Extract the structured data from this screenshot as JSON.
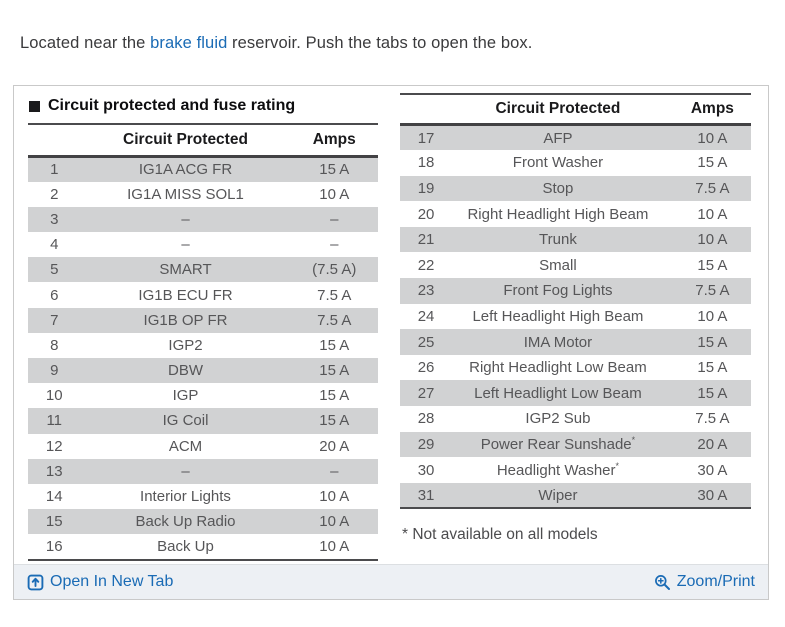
{
  "intro": {
    "text_before": "Located near the ",
    "link_text": "brake fluid",
    "text_after": " reservoir. Push the tabs to open the box."
  },
  "panel": {
    "section_title": "Circuit protected and fuse rating",
    "left_table": {
      "headers": {
        "circuit": "Circuit Protected",
        "amps": "Amps"
      },
      "rows": [
        {
          "num": "1",
          "circuit": "IG1A ACG FR",
          "amps": "15 A"
        },
        {
          "num": "2",
          "circuit": "IG1A MISS SOL1",
          "amps": "10 A"
        },
        {
          "num": "3",
          "circuit": "–",
          "amps": "–"
        },
        {
          "num": "4",
          "circuit": "–",
          "amps": "–"
        },
        {
          "num": "5",
          "circuit": "SMART",
          "amps": "(7.5 A)"
        },
        {
          "num": "6",
          "circuit": "IG1B ECU FR",
          "amps": "7.5 A"
        },
        {
          "num": "7",
          "circuit": "IG1B OP FR",
          "amps": "7.5 A"
        },
        {
          "num": "8",
          "circuit": "IGP2",
          "amps": "15 A"
        },
        {
          "num": "9",
          "circuit": "DBW",
          "amps": "15 A"
        },
        {
          "num": "10",
          "circuit": "IGP",
          "amps": "15 A"
        },
        {
          "num": "11",
          "circuit": "IG Coil",
          "amps": "15 A"
        },
        {
          "num": "12",
          "circuit": "ACM",
          "amps": "20 A"
        },
        {
          "num": "13",
          "circuit": "–",
          "amps": "–"
        },
        {
          "num": "14",
          "circuit": "Interior Lights",
          "amps": "10 A"
        },
        {
          "num": "15",
          "circuit": "Back Up Radio",
          "amps": "10 A"
        },
        {
          "num": "16",
          "circuit": "Back Up",
          "amps": "10 A"
        }
      ]
    },
    "right_table": {
      "headers": {
        "circuit": "Circuit Protected",
        "amps": "Amps"
      },
      "rows": [
        {
          "num": "17",
          "circuit": "AFP",
          "amps": "10 A"
        },
        {
          "num": "18",
          "circuit": "Front Washer",
          "amps": "15 A"
        },
        {
          "num": "19",
          "circuit": "Stop",
          "amps": "7.5 A"
        },
        {
          "num": "20",
          "circuit": "Right Headlight High Beam",
          "amps": "10 A"
        },
        {
          "num": "21",
          "circuit": "Trunk",
          "amps": "10 A"
        },
        {
          "num": "22",
          "circuit": "Small",
          "amps": "15 A"
        },
        {
          "num": "23",
          "circuit": "Front Fog Lights",
          "amps": "7.5 A"
        },
        {
          "num": "24",
          "circuit": "Left Headlight High Beam",
          "amps": "10 A"
        },
        {
          "num": "25",
          "circuit": "IMA Motor",
          "amps": "15 A"
        },
        {
          "num": "26",
          "circuit": "Right Headlight Low Beam",
          "amps": "15 A"
        },
        {
          "num": "27",
          "circuit": "Left Headlight Low Beam",
          "amps": "15 A"
        },
        {
          "num": "28",
          "circuit": "IGP2 Sub",
          "amps": "7.5 A"
        },
        {
          "num": "29",
          "circuit": "Power Rear Sunshade*",
          "amps": "20 A"
        },
        {
          "num": "30",
          "circuit": "Headlight Washer*",
          "amps": "30 A"
        },
        {
          "num": "31",
          "circuit": "Wiper",
          "amps": "30 A"
        }
      ]
    },
    "footnote": "* Not available on all models",
    "footer": {
      "open_in_new_tab": "Open In New Tab",
      "zoom_print": "Zoom/Print"
    }
  },
  "icons": {
    "open_in_new_tab": "box-with-up-arrow",
    "zoom_print": "magnifier-with-plus"
  },
  "colors": {
    "link_blue": "#1a6bb5",
    "row_shade": "#d1d2d3",
    "footer_bg": "#edf0f4",
    "table_rule": "#4b4b4d"
  }
}
